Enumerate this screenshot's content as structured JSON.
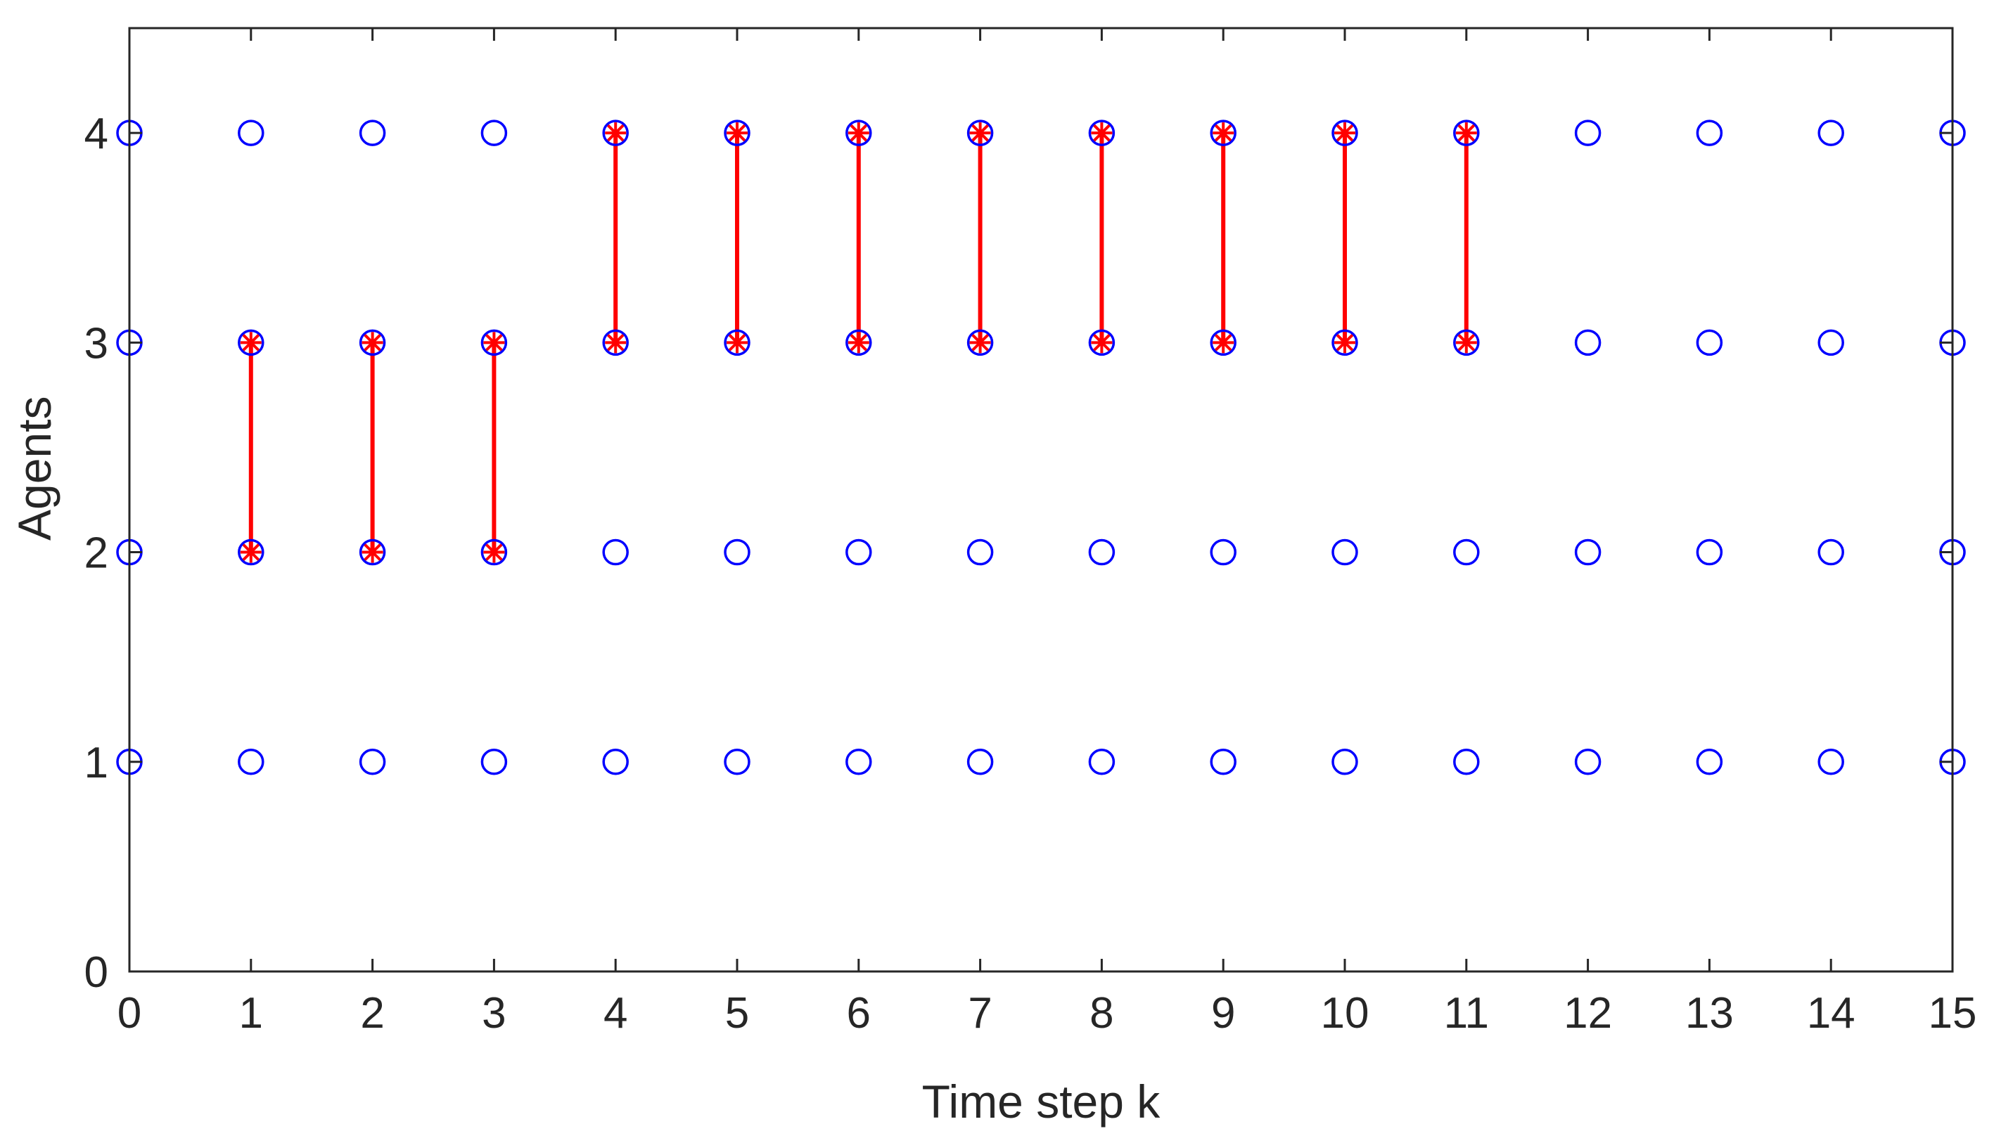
{
  "chart_data": {
    "type": "scatter",
    "title": "",
    "xlabel": "Time step k",
    "ylabel": "Agents",
    "xlim": [
      0,
      15
    ],
    "ylim": [
      0,
      4.5
    ],
    "xticks": [
      "0",
      "1",
      "2",
      "3",
      "4",
      "5",
      "6",
      "7",
      "8",
      "9",
      "10",
      "11",
      "12",
      "13",
      "14",
      "15"
    ],
    "yticks": [
      "0",
      "1",
      "2",
      "3",
      "4"
    ],
    "grid": false,
    "legend": "none",
    "agents": [
      1,
      2,
      3,
      4
    ],
    "time_steps": [
      0,
      1,
      2,
      3,
      4,
      5,
      6,
      7,
      8,
      9,
      10,
      11,
      12,
      13,
      14,
      15
    ],
    "links": [
      {
        "k": 1,
        "from": 2,
        "to": 3
      },
      {
        "k": 2,
        "from": 2,
        "to": 3
      },
      {
        "k": 3,
        "from": 2,
        "to": 3
      },
      {
        "k": 4,
        "from": 3,
        "to": 4
      },
      {
        "k": 5,
        "from": 3,
        "to": 4
      },
      {
        "k": 6,
        "from": 3,
        "to": 4
      },
      {
        "k": 7,
        "from": 3,
        "to": 4
      },
      {
        "k": 8,
        "from": 3,
        "to": 4
      },
      {
        "k": 9,
        "from": 3,
        "to": 4
      },
      {
        "k": 10,
        "from": 3,
        "to": 4
      },
      {
        "k": 11,
        "from": 3,
        "to": 4
      }
    ],
    "colors": {
      "node": "#0000ff",
      "link": "#ff0000",
      "axis": "#262626"
    }
  }
}
